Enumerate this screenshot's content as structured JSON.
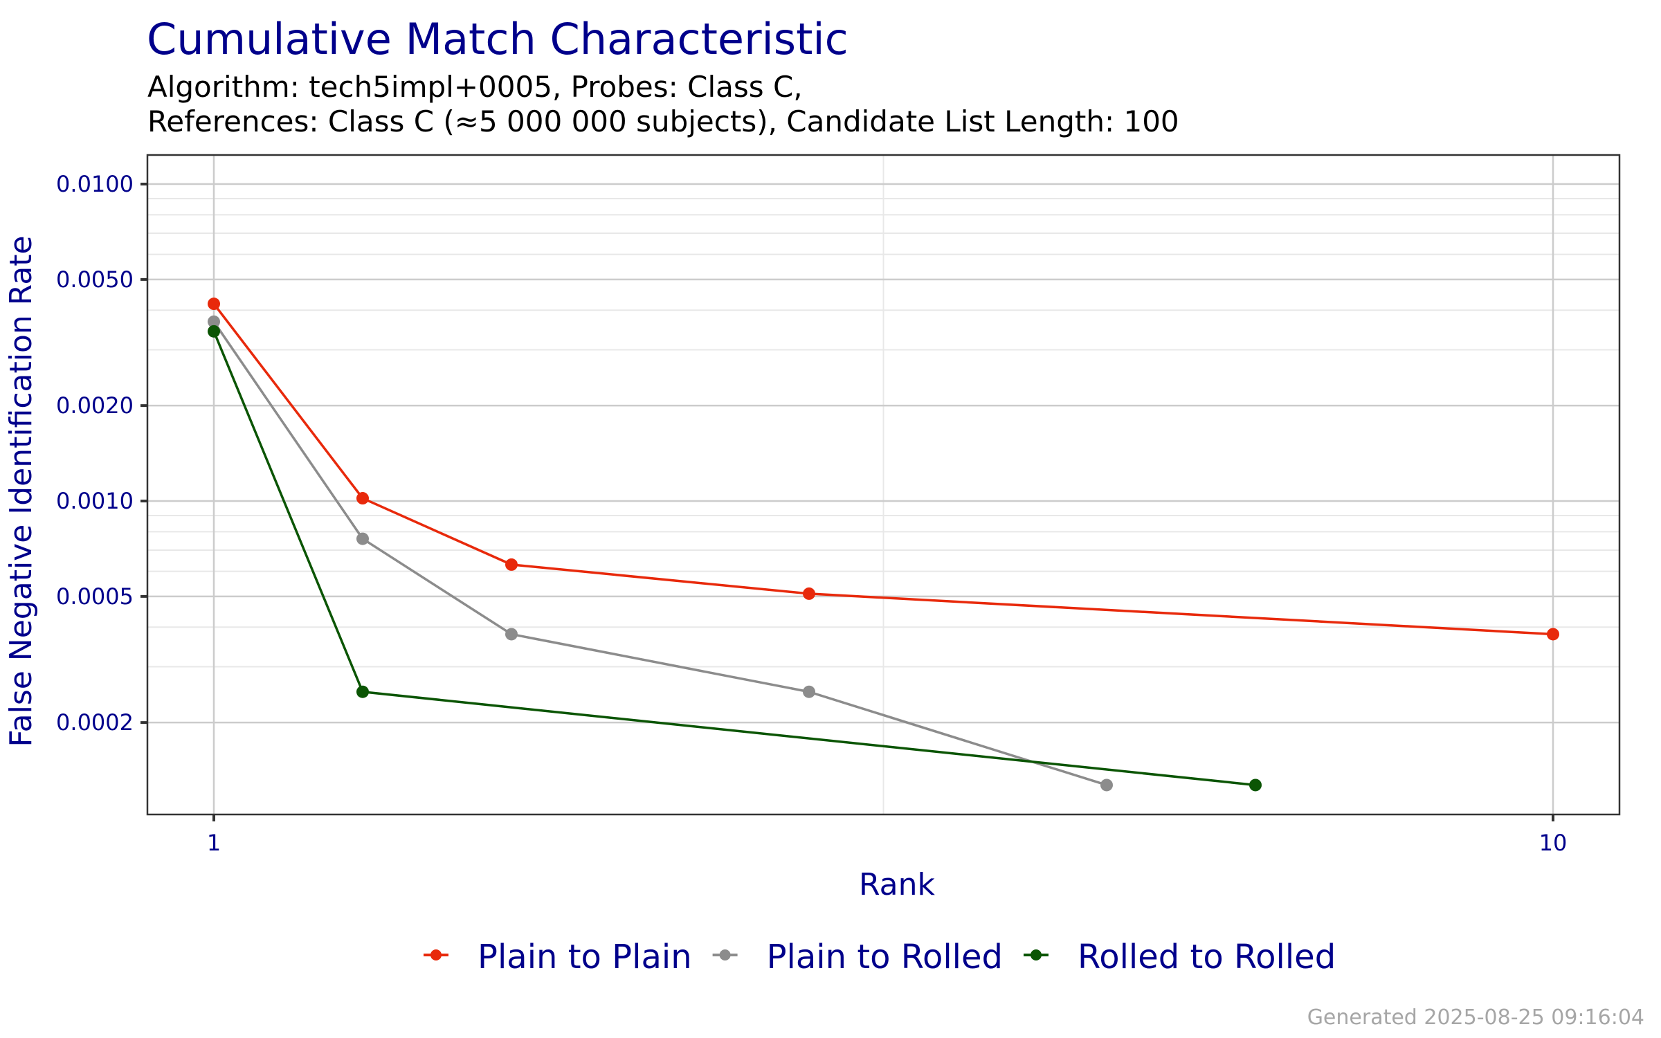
{
  "header": {
    "title": "Cumulative Match Characteristic",
    "subtitle_line1": "Algorithm: tech5impl+0005, Probes: Class C,",
    "subtitle_line2": "References: Class C (≈5 000 000 subjects), Candidate List Length: 100"
  },
  "footer": {
    "generated": "Generated 2025-08-25 09:16:04"
  },
  "colors": {
    "title": "#00008B",
    "axis_text": "#00008B",
    "subtitle": "#000000",
    "footer": "#A6A6A6",
    "panel_border": "#333333",
    "grid_major": "#CCCCCC",
    "grid_minor": "#E8E8E8"
  },
  "chart_data": {
    "type": "line",
    "title": "Cumulative Match Characteristic",
    "subtitle": "Algorithm: tech5impl+0005, Probes: Class C, References: Class C (≈5 000 000 subjects), Candidate List Length: 100",
    "xlabel": "Rank",
    "ylabel": "False Negative Identification Rate",
    "x_scale": "linear",
    "y_scale": "log10",
    "xlim": [
      0.67,
      10.5
    ],
    "ylim": [
      0.000119,
      0.0123
    ],
    "x_ticks": [
      1,
      10
    ],
    "x_tick_labels": [
      "1",
      "10"
    ],
    "y_ticks": [
      0.0002,
      0.0005,
      0.001,
      0.002,
      0.005,
      0.01
    ],
    "y_tick_labels": [
      "0.0002",
      "0.0005",
      "0.0010",
      "0.0020",
      "0.0050",
      "0.0100"
    ],
    "grid": true,
    "legend_position": "bottom",
    "series": [
      {
        "name": "Plain to Plain",
        "color": "#E8290B",
        "x": [
          1,
          2,
          3,
          5,
          10
        ],
        "y": [
          0.00419,
          0.00102,
          0.00063,
          0.00051,
          0.00038
        ]
      },
      {
        "name": "Plain to Rolled",
        "color": "#8C8C8C",
        "x": [
          1,
          2,
          3,
          5,
          7
        ],
        "y": [
          0.00368,
          0.00076,
          0.00038,
          0.00025,
          0.000127
        ]
      },
      {
        "name": "Rolled to Rolled",
        "color": "#0B5504",
        "x": [
          1,
          2,
          8
        ],
        "y": [
          0.00343,
          0.00025,
          0.000127
        ]
      }
    ]
  }
}
